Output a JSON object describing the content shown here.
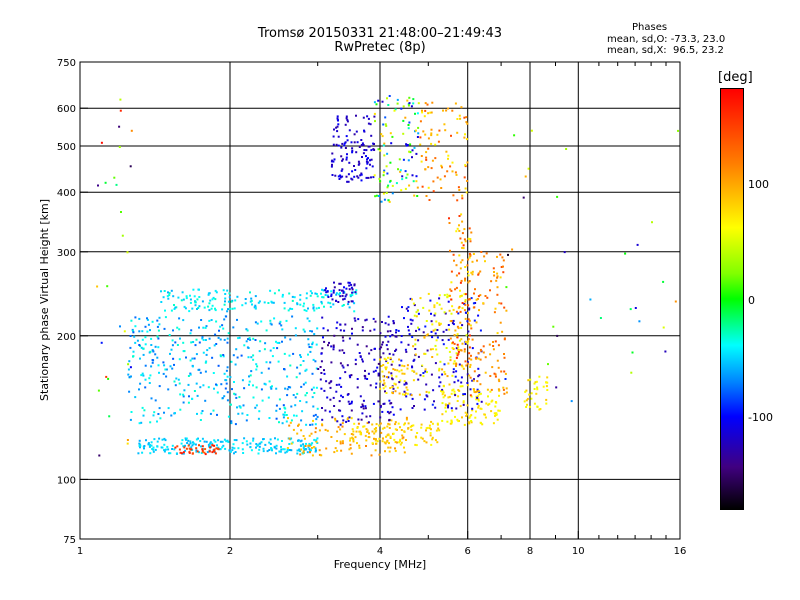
{
  "header": {
    "title_line1": "Tromsø 20150331 21:48:00–21:49:43",
    "title_line2": "RwPretec (8p)"
  },
  "phases_box": {
    "heading": "Phases",
    "line_o": "mean, sd,O: -73.3, 23.0",
    "line_x": "mean, sd,X:  96.5, 23.2"
  },
  "colorbar": {
    "unit_label": "[deg]",
    "ticks": [
      "100",
      "0",
      "-100"
    ],
    "tick_values": [
      100,
      0,
      -100
    ],
    "range": [
      -180,
      180
    ]
  },
  "chart_data": {
    "type": "scatter",
    "xlabel": "Frequency [MHz]",
    "ylabel": "Stationary phase Virtual Height [km]",
    "xscale": "log",
    "yscale": "log",
    "xlim": [
      1,
      16
    ],
    "ylim": [
      75,
      750
    ],
    "x_ticks": [
      1,
      2,
      4,
      6,
      8,
      10,
      16
    ],
    "x_minor_ticks": [
      3,
      5,
      7,
      9,
      11,
      12,
      13,
      14,
      15
    ],
    "y_ticks": [
      75,
      100,
      200,
      300,
      400,
      500,
      600,
      750
    ],
    "grid": true,
    "color_by": "phase [deg]",
    "clusters": [
      {
        "x_from": 1.3,
        "x_to": 3.0,
        "y_from": 113,
        "y_to": 122,
        "n": 220,
        "phase": [
          -60,
          -40
        ]
      },
      {
        "x_from": 1.55,
        "x_to": 1.9,
        "y_from": 113,
        "y_to": 118,
        "n": 40,
        "phase": [
          150,
          175
        ]
      },
      {
        "x_from": 2.6,
        "x_to": 4.6,
        "y_from": 112,
        "y_to": 135,
        "n": 120,
        "phase": [
          110,
          140
        ]
      },
      {
        "x_from": 3.5,
        "x_to": 5.3,
        "y_from": 118,
        "y_to": 132,
        "n": 100,
        "phase": [
          100,
          125
        ]
      },
      {
        "x_from": 5.3,
        "x_to": 7.0,
        "y_from": 130,
        "y_to": 155,
        "n": 100,
        "phase": [
          90,
          120
        ]
      },
      {
        "x_from": 7.8,
        "x_to": 8.7,
        "y_from": 140,
        "y_to": 165,
        "n": 35,
        "phase": [
          90,
          120
        ]
      },
      {
        "x_from": 1.45,
        "x_to": 3.6,
        "y_from": 225,
        "y_to": 250,
        "n": 170,
        "phase": [
          -60,
          -30
        ]
      },
      {
        "x_from": 3.1,
        "x_to": 3.6,
        "y_from": 235,
        "y_to": 260,
        "n": 45,
        "phase": [
          -130,
          -100
        ]
      },
      {
        "x_from": 1.25,
        "x_to": 3.0,
        "y_from": 130,
        "y_to": 220,
        "n": 440,
        "phase": [
          -80,
          -30
        ]
      },
      {
        "x_from": 3.0,
        "x_to": 4.3,
        "y_from": 130,
        "y_to": 220,
        "n": 200,
        "phase": [
          -140,
          -100
        ]
      },
      {
        "x_from": 4.0,
        "x_to": 4.6,
        "y_from": 150,
        "y_to": 180,
        "n": 55,
        "phase": [
          100,
          130
        ]
      },
      {
        "x_from": 4.3,
        "x_to": 6.4,
        "y_from": 140,
        "y_to": 240,
        "n": 150,
        "phase": [
          -130,
          -90
        ]
      },
      {
        "x_from": 4.6,
        "x_to": 6.0,
        "y_from": 150,
        "y_to": 250,
        "n": 110,
        "phase": [
          80,
          130
        ]
      },
      {
        "x_from": 5.5,
        "x_to": 6.1,
        "y_from": 170,
        "y_to": 360,
        "n": 110,
        "phase": [
          100,
          170
        ]
      },
      {
        "x_from": 6.0,
        "x_to": 7.2,
        "y_from": 150,
        "y_to": 300,
        "n": 120,
        "phase": [
          110,
          160
        ]
      },
      {
        "x_from": 3.2,
        "x_to": 3.9,
        "y_from": 420,
        "y_to": 580,
        "n": 120,
        "phase": [
          -130,
          -100
        ]
      },
      {
        "x_from": 3.9,
        "x_to": 4.8,
        "y_from": 380,
        "y_to": 640,
        "n": 110,
        "phase": [
          -120,
          130
        ]
      },
      {
        "x_from": 4.8,
        "x_to": 6.0,
        "y_from": 380,
        "y_to": 620,
        "n": 90,
        "phase": [
          100,
          160
        ]
      },
      {
        "x_from": 1.05,
        "x_to": 1.3,
        "y_from": 100,
        "y_to": 700,
        "n": 28,
        "phase": [
          -180,
          180
        ]
      },
      {
        "x_from": 7.0,
        "x_to": 16.0,
        "y_from": 140,
        "y_to": 550,
        "n": 32,
        "phase": [
          -180,
          180
        ]
      }
    ]
  }
}
